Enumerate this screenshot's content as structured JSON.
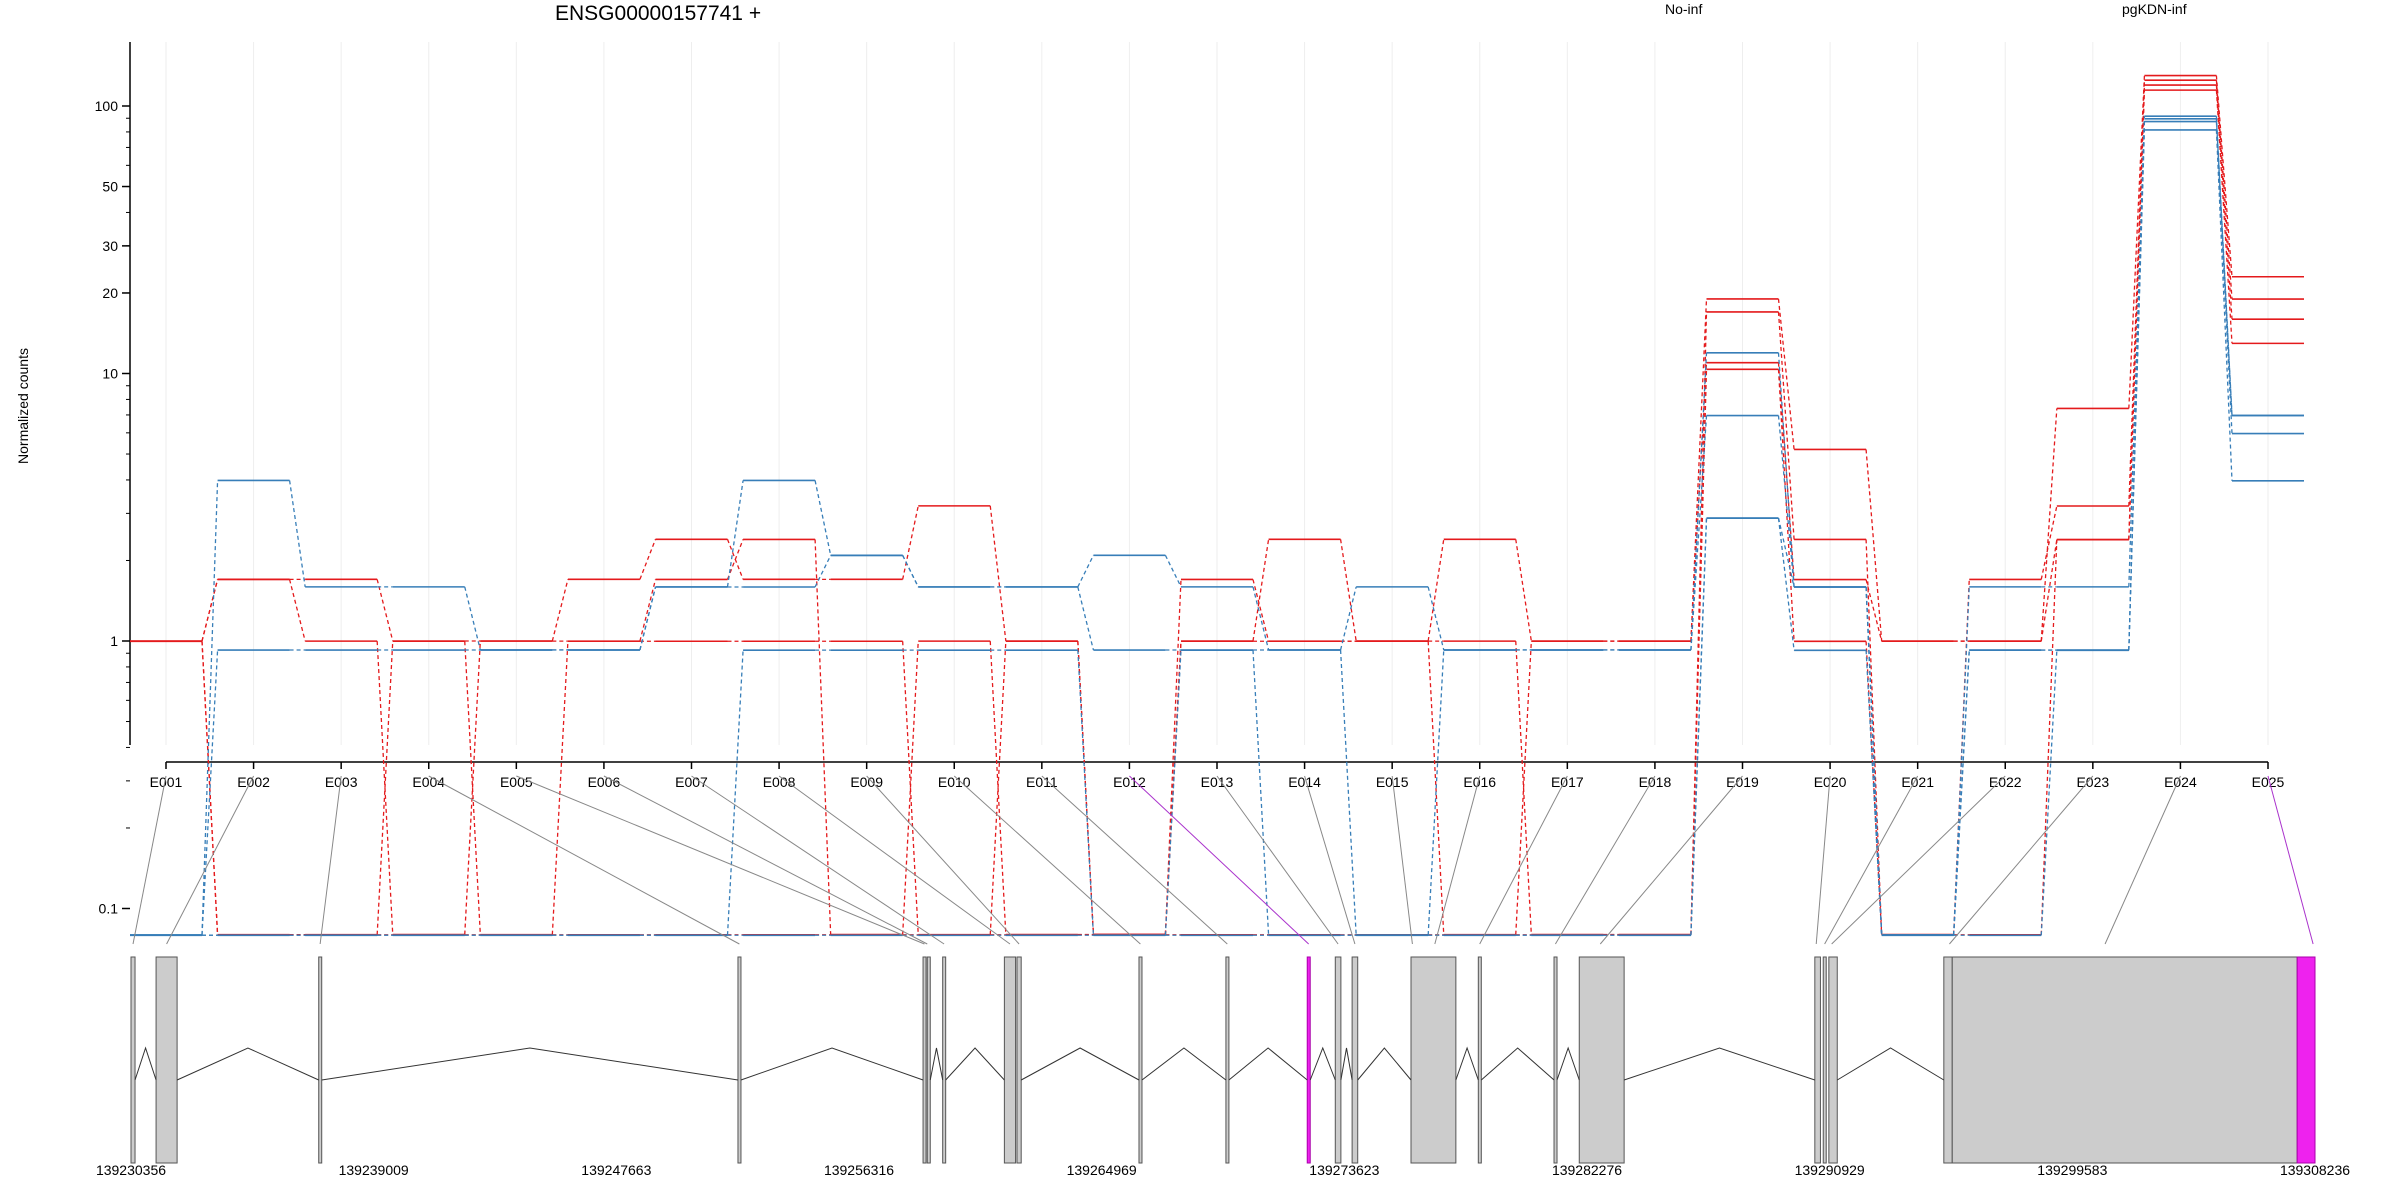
{
  "chart_data": {
    "type": "line",
    "title": "ENSG00000157741 +",
    "ylabel": "Normalized counts",
    "yscale": "log",
    "ylim": [
      0.075,
      160
    ],
    "yticks": [
      {
        "value": 0.1,
        "label": "0.1"
      },
      {
        "value": 1,
        "label": "1"
      },
      {
        "value": 10,
        "label": "10"
      },
      {
        "value": 20,
        "label": "20"
      },
      {
        "value": 30,
        "label": "30"
      },
      {
        "value": 50,
        "label": "50"
      },
      {
        "value": 100,
        "label": "100"
      }
    ],
    "exons": [
      "E001",
      "E002",
      "E003",
      "E004",
      "E005",
      "E006",
      "E007",
      "E008",
      "E009",
      "E010",
      "E011",
      "E012",
      "E013",
      "E014",
      "E015",
      "E016",
      "E017",
      "E018",
      "E019",
      "E020",
      "E021",
      "E022",
      "E023",
      "E024",
      "E025"
    ],
    "highlighted_exons": [
      "E012",
      "E025"
    ],
    "legend_position": "top",
    "groups": [
      {
        "name": "No-inf",
        "color": "#e41a1c",
        "samples": [
          [
            1,
            1.7,
            1.7,
            1,
            1,
            1.7,
            2.4,
            1.7,
            1.7,
            3.2,
            1,
            0.08,
            1,
            2.4,
            1,
            2.4,
            1,
            1,
            19,
            5.2,
            1,
            1,
            7.4,
            130,
            23
          ],
          [
            1,
            1.7,
            1,
            0.08,
            1,
            1,
            1.7,
            2.4,
            0.08,
            1,
            0.08,
            0.08,
            1.7,
            1,
            1,
            1,
            0.08,
            0.08,
            17,
            2.4,
            0.08,
            1.7,
            3.2,
            125,
            19
          ],
          [
            1,
            0.08,
            0.08,
            1,
            0.08,
            1,
            1,
            1,
            1,
            0.08,
            1,
            0.08,
            1,
            1,
            1,
            0.08,
            1,
            1,
            11,
            1.7,
            1,
            1,
            2.4,
            120,
            16
          ],
          [
            1,
            0.08,
            0.08,
            0.08,
            0.08,
            0.08,
            0.08,
            0.08,
            0.08,
            0.08,
            0.08,
            0.08,
            0.08,
            0.08,
            0.08,
            0.08,
            0.08,
            0.08,
            10.4,
            1,
            0.08,
            0.08,
            2.4,
            115,
            13
          ]
        ]
      },
      {
        "name": "pgKDN-inf",
        "color": "#377eb8",
        "samples": [
          [
            0.08,
            4,
            1.6,
            1.6,
            0.93,
            0.93,
            1.6,
            4,
            2.1,
            1.6,
            1.6,
            2.1,
            1.6,
            0.93,
            1.6,
            0.93,
            0.93,
            0.93,
            12,
            1.6,
            0.08,
            1.6,
            1.6,
            92,
            7
          ],
          [
            0.08,
            0.93,
            0.93,
            0.93,
            0.93,
            0.93,
            1.6,
            1.6,
            2.1,
            1.6,
            1.6,
            0.93,
            0.93,
            0.93,
            0.08,
            0.93,
            0.93,
            0.93,
            7,
            1.6,
            0.08,
            0.93,
            0.93,
            90,
            7
          ],
          [
            0.08,
            0.08,
            0.08,
            0.08,
            0.08,
            0.08,
            0.08,
            0.93,
            0.93,
            0.93,
            0.93,
            0.08,
            0.93,
            0.08,
            0.08,
            0.08,
            0.08,
            0.08,
            2.9,
            1.6,
            0.08,
            0.93,
            0.93,
            88,
            6
          ],
          [
            0.08,
            0.08,
            0.08,
            0.08,
            0.08,
            0.08,
            0.08,
            0.08,
            0.08,
            0.08,
            0.08,
            0.08,
            0.08,
            0.08,
            0.08,
            0.08,
            0.08,
            0.08,
            2.9,
            0.93,
            0.08,
            0.08,
            0.93,
            82,
            4
          ]
        ]
      }
    ],
    "gene_model": {
      "coordinate_ticks": [
        139230356,
        139239009,
        139247663,
        139256316,
        139264969,
        139273623,
        139282276,
        139290929,
        139299583,
        139308236
      ],
      "range": [
        139230356,
        139308236
      ],
      "exon_segments": [
        {
          "start": 139230356,
          "end": 139230500
        },
        {
          "start": 139231250,
          "end": 139232000
        },
        {
          "start": 139237050,
          "end": 139237150
        },
        {
          "start": 139252000,
          "end": 139252100
        },
        {
          "start": 139258600,
          "end": 139258700
        },
        {
          "start": 139258750,
          "end": 139258800
        },
        {
          "start": 139259300,
          "end": 139259400
        },
        {
          "start": 139261500,
          "end": 139261900
        },
        {
          "start": 139261950,
          "end": 139262100
        },
        {
          "start": 139266300,
          "end": 139266400
        },
        {
          "start": 139269400,
          "end": 139269500
        },
        {
          "start": 139272300,
          "end": 139272400,
          "highlight": true
        },
        {
          "start": 139273300,
          "end": 139273500
        },
        {
          "start": 139273900,
          "end": 139274100
        },
        {
          "start": 139276000,
          "end": 139277600
        },
        {
          "start": 139278400,
          "end": 139278500
        },
        {
          "start": 139281100,
          "end": 139281200
        },
        {
          "start": 139282000,
          "end": 139283600
        },
        {
          "start": 139290400,
          "end": 139290600
        },
        {
          "start": 139290700,
          "end": 139290800
        },
        {
          "start": 139290900,
          "end": 139291200
        },
        {
          "start": 139295000,
          "end": 139295300
        },
        {
          "start": 139295300,
          "end": 139307600
        },
        {
          "start": 139307600,
          "end": 139308236,
          "highlight": true
        }
      ],
      "exon_links": [
        {
          "exon": "E001",
          "start": 139230356,
          "end": 139230500
        },
        {
          "exon": "E002",
          "start": 139231250,
          "end": 139232000
        },
        {
          "exon": "E003",
          "start": 139237050,
          "end": 139237150
        },
        {
          "exon": "E004",
          "start": 139252000,
          "end": 139252100
        },
        {
          "exon": "E005",
          "start": 139258600,
          "end": 139258700
        },
        {
          "exon": "E006",
          "start": 139258700,
          "end": 139258800
        },
        {
          "exon": "E007",
          "start": 139259300,
          "end": 139259400
        },
        {
          "exon": "E008",
          "start": 139261500,
          "end": 139261900
        },
        {
          "exon": "E009",
          "start": 139261950,
          "end": 139262100
        },
        {
          "exon": "E010",
          "start": 139266300,
          "end": 139266400
        },
        {
          "exon": "E011",
          "start": 139269400,
          "end": 139269500
        },
        {
          "exon": "E012",
          "start": 139272300,
          "end": 139272400
        },
        {
          "exon": "E013",
          "start": 139273300,
          "end": 139273500
        },
        {
          "exon": "E014",
          "start": 139273900,
          "end": 139274100
        },
        {
          "exon": "E015",
          "start": 139276000,
          "end": 139276100
        },
        {
          "exon": "E016",
          "start": 139276800,
          "end": 139276900
        },
        {
          "exon": "E017",
          "start": 139278400,
          "end": 139278500
        },
        {
          "exon": "E018",
          "start": 139281100,
          "end": 139281200
        },
        {
          "exon": "E019",
          "start": 139282700,
          "end": 139282800
        },
        {
          "exon": "E020",
          "start": 139290400,
          "end": 139290500
        },
        {
          "exon": "E021",
          "start": 139290700,
          "end": 139290800
        },
        {
          "exon": "E022",
          "start": 139290950,
          "end": 139291050
        },
        {
          "exon": "E023",
          "start": 139295150,
          "end": 139295250
        },
        {
          "exon": "E024",
          "start": 139300700,
          "end": 139300800
        },
        {
          "exon": "E025",
          "start": 139308100,
          "end": 139308236
        }
      ]
    }
  }
}
